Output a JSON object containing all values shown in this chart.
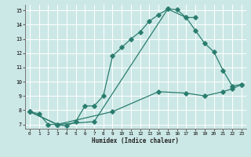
{
  "xlabel": "Humidex (Indice chaleur)",
  "background_color": "#cce8e6",
  "grid_color": "#ffffff",
  "line_color": "#2a7d6e",
  "xlim": [
    -0.5,
    23.5
  ],
  "ylim": [
    6.7,
    15.4
  ],
  "xticks": [
    0,
    1,
    2,
    3,
    4,
    5,
    6,
    7,
    8,
    9,
    10,
    11,
    12,
    13,
    14,
    15,
    16,
    17,
    18,
    19,
    20,
    21,
    22,
    23
  ],
  "yticks": [
    7,
    8,
    9,
    10,
    11,
    12,
    13,
    14,
    15
  ],
  "line1_x": [
    0,
    1,
    2,
    3,
    4,
    5,
    6,
    7,
    8,
    9,
    10,
    11,
    12,
    13,
    14,
    15,
    16,
    17,
    18
  ],
  "line1_y": [
    7.9,
    7.75,
    7.0,
    7.0,
    6.9,
    7.2,
    8.3,
    8.3,
    9.0,
    11.8,
    12.4,
    13.0,
    13.5,
    14.25,
    14.7,
    15.1,
    15.05,
    14.5,
    14.5
  ],
  "line2_x": [
    0,
    3,
    7,
    15,
    17,
    18,
    19,
    20,
    21,
    22,
    23
  ],
  "line2_y": [
    7.9,
    7.0,
    7.2,
    15.1,
    14.5,
    13.6,
    12.7,
    12.1,
    10.8,
    9.7,
    9.8
  ],
  "line3_x": [
    0,
    3,
    9,
    14,
    17,
    19,
    21,
    22,
    23
  ],
  "line3_y": [
    7.9,
    7.0,
    7.9,
    9.3,
    9.2,
    9.0,
    9.3,
    9.5,
    9.8
  ],
  "markersize": 2.8
}
